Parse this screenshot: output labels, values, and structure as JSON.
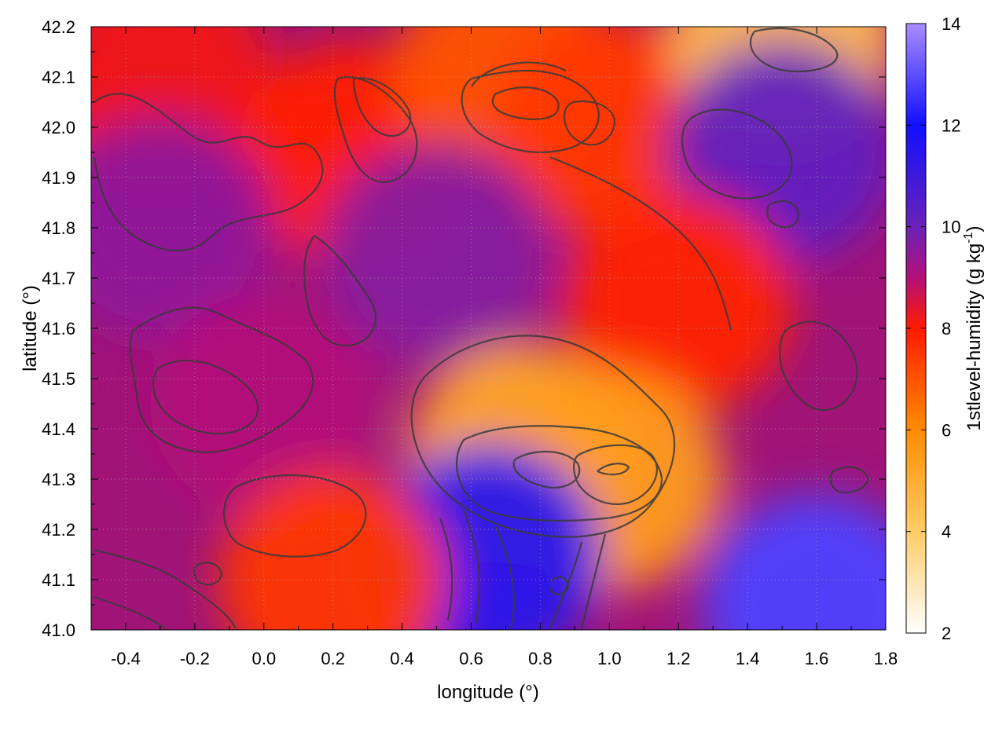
{
  "chart_data": {
    "type": "heatmap",
    "title": "",
    "xlabel": "longitude (°)",
    "ylabel": "latitude (°)",
    "xlim": [
      -0.5,
      1.8
    ],
    "ylim": [
      41.0,
      42.2
    ],
    "x_ticks": [
      "-0.4",
      "-0.2",
      "0.0",
      "0.2",
      "0.4",
      "0.6",
      "0.8",
      "1.0",
      "1.2",
      "1.4",
      "1.6",
      "1.8"
    ],
    "y_ticks": [
      "41.0",
      "41.1",
      "41.2",
      "41.3",
      "41.4",
      "41.5",
      "41.6",
      "41.7",
      "41.8",
      "41.9",
      "42.0",
      "42.1",
      "42.2"
    ],
    "grid": true,
    "colorbar": {
      "label": "1stlevel-humidity (g kg",
      "label_sup": "-1",
      "label_close": ")",
      "range": [
        2,
        14
      ],
      "ticks": [
        "2",
        "4",
        "6",
        "8",
        "10",
        "12",
        "14"
      ],
      "colors": [
        {
          "value": 2,
          "color": "#ffffff"
        },
        {
          "value": 4,
          "color": "#ffcc66"
        },
        {
          "value": 6,
          "color": "#ff8c00"
        },
        {
          "value": 8,
          "color": "#ff1a00"
        },
        {
          "value": 9,
          "color": "#b3107a"
        },
        {
          "value": 10,
          "color": "#6a22b8"
        },
        {
          "value": 12,
          "color": "#1010ff"
        },
        {
          "value": 14,
          "color": "#a98cff"
        }
      ]
    },
    "contours": true,
    "humidity_regions": [
      {
        "lon": -0.3,
        "lat": 42.1,
        "value": 8.2
      },
      {
        "lon": 0.25,
        "lat": 41.95,
        "value": 8.0
      },
      {
        "lon": 0.7,
        "lat": 42.1,
        "value": 7.0
      },
      {
        "lon": 1.0,
        "lat": 42.0,
        "value": 7.5
      },
      {
        "lon": 1.5,
        "lat": 42.17,
        "value": 4.5
      },
      {
        "lon": 1.5,
        "lat": 41.95,
        "value": 10.2
      },
      {
        "lon": -0.3,
        "lat": 41.8,
        "value": 9.5
      },
      {
        "lon": 0.0,
        "lat": 41.45,
        "value": 9.0
      },
      {
        "lon": 0.5,
        "lat": 41.75,
        "value": 9.6
      },
      {
        "lon": 1.2,
        "lat": 41.65,
        "value": 7.8
      },
      {
        "lon": 0.75,
        "lat": 41.35,
        "value": 5.2
      },
      {
        "lon": 1.0,
        "lat": 41.3,
        "value": 5.5
      },
      {
        "lon": 0.65,
        "lat": 41.15,
        "value": 11.5
      },
      {
        "lon": 1.6,
        "lat": 41.05,
        "value": 12.8
      },
      {
        "lon": 0.2,
        "lat": 41.1,
        "value": 7.5
      }
    ]
  }
}
